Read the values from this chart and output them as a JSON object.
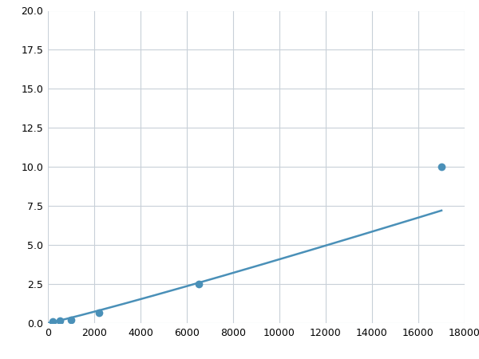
{
  "x_points": [
    200,
    500,
    1000,
    2200,
    6500,
    17000
  ],
  "y_points": [
    0.1,
    0.15,
    0.22,
    0.65,
    2.5,
    10.0
  ],
  "line_color": "#4a90b8",
  "marker_color": "#4a90b8",
  "marker_size": 7,
  "line_width": 1.8,
  "xlim": [
    0,
    18000
  ],
  "ylim": [
    0,
    20.0
  ],
  "xticks": [
    0,
    2000,
    4000,
    6000,
    8000,
    10000,
    12000,
    14000,
    16000,
    18000
  ],
  "yticks": [
    0.0,
    2.5,
    5.0,
    7.5,
    10.0,
    12.5,
    15.0,
    17.5,
    20.0
  ],
  "grid_color": "#c8d0d8",
  "background_color": "#ffffff",
  "figsize": [
    6.0,
    4.5
  ],
  "dpi": 100
}
